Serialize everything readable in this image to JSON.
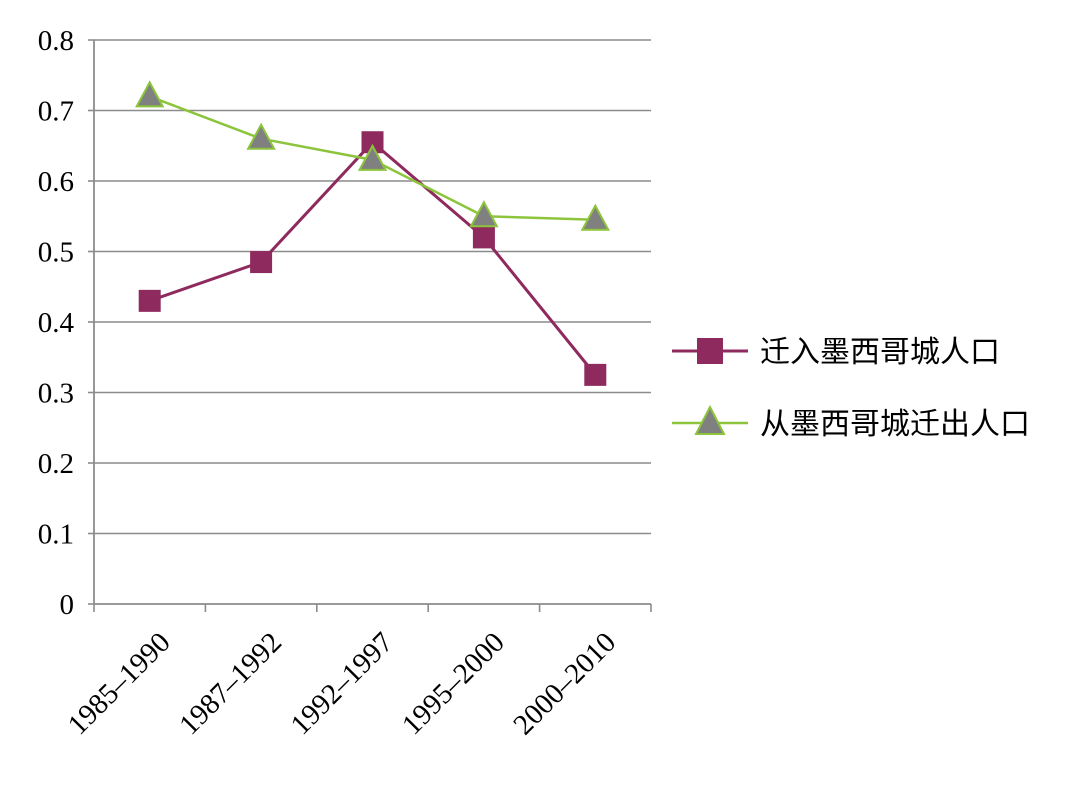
{
  "chart_data": {
    "type": "line",
    "categories": [
      "1985–1990",
      "1987–1992",
      "1992–1997",
      "1995–2000",
      "2000–2010"
    ],
    "series": [
      {
        "name": "迁入墨西哥城人口",
        "values": [
          0.43,
          0.485,
          0.655,
          0.52,
          0.325
        ],
        "color": "#8e2a5e",
        "marker": "square"
      },
      {
        "name": "从墨西哥城迁出人口",
        "values": [
          0.72,
          0.66,
          0.63,
          0.55,
          0.545
        ],
        "color": "#8cc43c",
        "marker_fill": "#808080",
        "marker": "triangle"
      }
    ],
    "y_ticks": [
      "0",
      "0.1",
      "0.2",
      "0.3",
      "0.4",
      "0.5",
      "0.6",
      "0.7",
      "0.8"
    ],
    "ylim": [
      0,
      0.8
    ],
    "grid": "horizontal",
    "legend_position": "right"
  }
}
